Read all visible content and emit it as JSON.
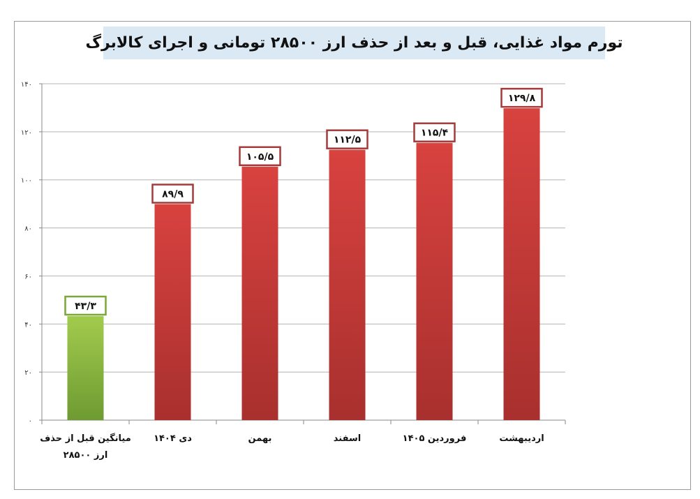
{
  "chart_data": {
    "type": "bar",
    "title": "تورم مواد غذایی، قبل و بعد از حذف ارز ۲۸۵۰۰ تومانی و اجرای کالابرگ",
    "categories": [
      [
        "میانگین قبل از حذف",
        "ارز ۲۸۵۰۰"
      ],
      [
        "دی ۱۴۰۴"
      ],
      [
        "بهمن"
      ],
      [
        "اسفند"
      ],
      [
        "فروردین ۱۴۰۵"
      ],
      [
        "اردیبهشت"
      ]
    ],
    "values": [
      43.3,
      89.9,
      105.5,
      112.5,
      115.4,
      129.8
    ],
    "data_labels": [
      "۴۳/۳",
      "۸۹/۹",
      "۱۰۵/۵",
      "۱۱۲/۵",
      "۱۱۵/۴",
      "۱۲۹/۸"
    ],
    "ylim": [
      0,
      140
    ],
    "yticks": [
      0,
      20,
      40,
      60,
      80,
      100,
      120,
      140
    ],
    "ytick_labels": [
      "۰",
      "۲۰",
      "۴۰",
      "۶۰",
      "۸۰",
      "۱۰۰",
      "۱۲۰",
      "۱۴۰"
    ],
    "grid": true,
    "colors": {
      "baseline_bar": "#8cb93e",
      "baseline_border": "#7aa73a",
      "bars": "#c63b38",
      "label_border": "#a33b3b",
      "gridline": "#b3b3b3",
      "title_background": "#dbe9f4"
    }
  }
}
